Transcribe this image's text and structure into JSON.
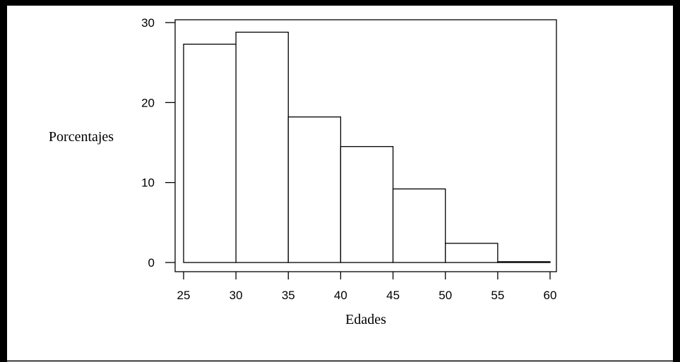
{
  "chart_data": {
    "type": "bar",
    "title": "Edades",
    "xlabel": "Edades",
    "ylabel": "Porcentajes",
    "bins": [
      {
        "from": 25,
        "to": 30,
        "value": 27.3
      },
      {
        "from": 30,
        "to": 35,
        "value": 28.8
      },
      {
        "from": 35,
        "to": 40,
        "value": 18.2
      },
      {
        "from": 40,
        "to": 45,
        "value": 14.5
      },
      {
        "from": 45,
        "to": 50,
        "value": 9.2
      },
      {
        "from": 50,
        "to": 55,
        "value": 2.4
      },
      {
        "from": 55,
        "to": 60,
        "value": 0.1
      }
    ],
    "x_ticks": [
      25,
      30,
      35,
      40,
      45,
      50,
      55,
      60
    ],
    "y_ticks": [
      0,
      10,
      20,
      30
    ],
    "xlim": [
      25,
      60
    ],
    "ylim": [
      -1,
      30.5
    ],
    "grid": false,
    "bar_fill": "#ffffff",
    "bar_stroke": "#000000",
    "frame_color": "#000000"
  }
}
